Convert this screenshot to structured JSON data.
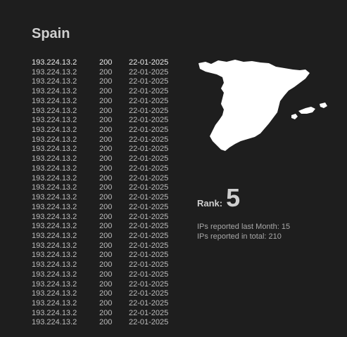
{
  "country": {
    "name": "Spain"
  },
  "reports": [
    {
      "ip": "193.224.13.2",
      "status": "200",
      "date": "22-01-2025"
    },
    {
      "ip": "193.224.13.2",
      "status": "200",
      "date": "22-01-2025"
    },
    {
      "ip": "193.224.13.2",
      "status": "200",
      "date": "22-01-2025"
    },
    {
      "ip": "193.224.13.2",
      "status": "200",
      "date": "22-01-2025"
    },
    {
      "ip": "193.224.13.2",
      "status": "200",
      "date": "22-01-2025"
    },
    {
      "ip": "193.224.13.2",
      "status": "200",
      "date": "22-01-2025"
    },
    {
      "ip": "193.224.13.2",
      "status": "200",
      "date": "22-01-2025"
    },
    {
      "ip": "193.224.13.2",
      "status": "200",
      "date": "22-01-2025"
    },
    {
      "ip": "193.224.13.2",
      "status": "200",
      "date": "22-01-2025"
    },
    {
      "ip": "193.224.13.2",
      "status": "200",
      "date": "22-01-2025"
    },
    {
      "ip": "193.224.13.2",
      "status": "200",
      "date": "22-01-2025"
    },
    {
      "ip": "193.224.13.2",
      "status": "200",
      "date": "22-01-2025"
    },
    {
      "ip": "193.224.13.2",
      "status": "200",
      "date": "22-01-2025"
    },
    {
      "ip": "193.224.13.2",
      "status": "200",
      "date": "22-01-2025"
    },
    {
      "ip": "193.224.13.2",
      "status": "200",
      "date": "22-01-2025"
    },
    {
      "ip": "193.224.13.2",
      "status": "200",
      "date": "22-01-2025"
    },
    {
      "ip": "193.224.13.2",
      "status": "200",
      "date": "22-01-2025"
    },
    {
      "ip": "193.224.13.2",
      "status": "200",
      "date": "22-01-2025"
    },
    {
      "ip": "193.224.13.2",
      "status": "200",
      "date": "22-01-2025"
    },
    {
      "ip": "193.224.13.2",
      "status": "200",
      "date": "22-01-2025"
    },
    {
      "ip": "193.224.13.2",
      "status": "200",
      "date": "22-01-2025"
    },
    {
      "ip": "193.224.13.2",
      "status": "200",
      "date": "22-01-2025"
    },
    {
      "ip": "193.224.13.2",
      "status": "200",
      "date": "22-01-2025"
    },
    {
      "ip": "193.224.13.2",
      "status": "200",
      "date": "22-01-2025"
    },
    {
      "ip": "193.224.13.2",
      "status": "200",
      "date": "22-01-2025"
    },
    {
      "ip": "193.224.13.2",
      "status": "200",
      "date": "22-01-2025"
    },
    {
      "ip": "193.224.13.2",
      "status": "200",
      "date": "22-01-2025"
    },
    {
      "ip": "193.224.13.2",
      "status": "200",
      "date": "22-01-2025"
    }
  ],
  "rank": {
    "label": "Rank:",
    "value": "5"
  },
  "stats": {
    "last_month": "IPs reported last Month: 15",
    "total": "IPs reported in total: 210"
  },
  "map": {
    "icon": "spain-map-icon",
    "fill_color": "#ffffff"
  },
  "colors": {
    "background": "#1e1e1e",
    "title": "#cfcfcf",
    "row_text": "#bdbdbd",
    "stats_text": "#a8a8a8"
  }
}
